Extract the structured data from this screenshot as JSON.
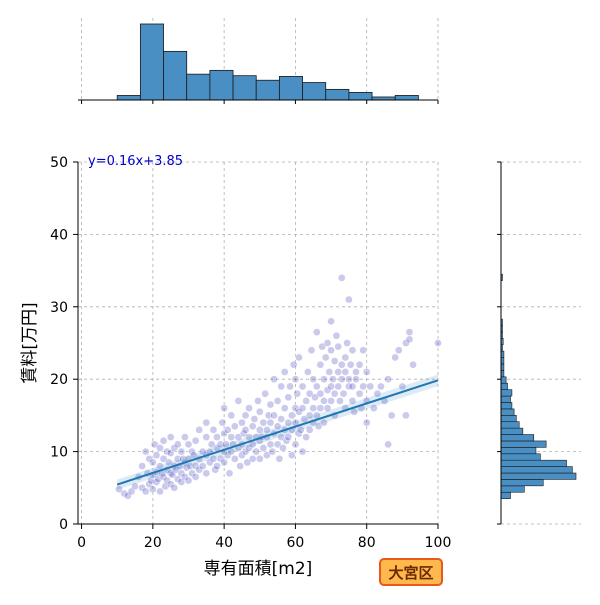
{
  "chart_data": {
    "type": "scatter",
    "title": "",
    "xlabel": "専有面積[m2]",
    "ylabel": "賃料[万円]",
    "xlim": [
      -1,
      100
    ],
    "ylim": [
      0,
      50
    ],
    "xticks": [
      "0",
      "20",
      "40",
      "60",
      "80",
      "100"
    ],
    "yticks": [
      "0",
      "10",
      "20",
      "30",
      "40",
      "50"
    ],
    "grid": true,
    "regression": {
      "label": "y=0.16x+3.85",
      "slope": 0.16,
      "intercept": 3.85,
      "x_range": [
        10,
        100
      ]
    },
    "badge": "大宮区",
    "colors": {
      "point": "#3f3fbf",
      "line": "#1f77b4",
      "bar": "#4a8fc4",
      "equation": "#0000cc",
      "badge_fill": "#ffb84d",
      "badge_border": "#e85a1a",
      "badge_text": "#6a2a00"
    },
    "points": [
      [
        10.5,
        4.8
      ],
      [
        12,
        4.2
      ],
      [
        13,
        3.9
      ],
      [
        14,
        4.5
      ],
      [
        15,
        5.2
      ],
      [
        16,
        6.5
      ],
      [
        17,
        5
      ],
      [
        17,
        8
      ],
      [
        18,
        4.5
      ],
      [
        18,
        10
      ],
      [
        18.5,
        7
      ],
      [
        19,
        5.5
      ],
      [
        19,
        9
      ],
      [
        19.5,
        6
      ],
      [
        20,
        6.8
      ],
      [
        20,
        8.5
      ],
      [
        20,
        4.8
      ],
      [
        20.5,
        11
      ],
      [
        21,
        7.2
      ],
      [
        21,
        9.5
      ],
      [
        21,
        5.8
      ],
      [
        21.5,
        6.2
      ],
      [
        22,
        8
      ],
      [
        22,
        10.5
      ],
      [
        22,
        4.5
      ],
      [
        22.5,
        7
      ],
      [
        23,
        6.5
      ],
      [
        23,
        9
      ],
      [
        23,
        11.5
      ],
      [
        23.5,
        5.2
      ],
      [
        24,
        7.5
      ],
      [
        24,
        10
      ],
      [
        24,
        6
      ],
      [
        24.5,
        8.5
      ],
      [
        25,
        7
      ],
      [
        25,
        5.5
      ],
      [
        25,
        9.8
      ],
      [
        25,
        12
      ],
      [
        25.5,
        6.8
      ],
      [
        26,
        8
      ],
      [
        26,
        10.5
      ],
      [
        26,
        5
      ],
      [
        26.5,
        7.5
      ],
      [
        27,
        9
      ],
      [
        27,
        6.2
      ],
      [
        27,
        11
      ],
      [
        27.5,
        8
      ],
      [
        28,
        7
      ],
      [
        28,
        10
      ],
      [
        28,
        5.8
      ],
      [
        28.5,
        9
      ],
      [
        29,
        8.5
      ],
      [
        29,
        6.5
      ],
      [
        29,
        12
      ],
      [
        29.5,
        7.8
      ],
      [
        30,
        9
      ],
      [
        30,
        6
      ],
      [
        30,
        11
      ],
      [
        30.5,
        8
      ],
      [
        31,
        7
      ],
      [
        31,
        10
      ],
      [
        31.5,
        9.5
      ],
      [
        32,
        8
      ],
      [
        32,
        6.5
      ],
      [
        32,
        11.5
      ],
      [
        33,
        9
      ],
      [
        33,
        7.5
      ],
      [
        33,
        13
      ],
      [
        34,
        10
      ],
      [
        34,
        8
      ],
      [
        35,
        9.5
      ],
      [
        35,
        7
      ],
      [
        35,
        12
      ],
      [
        35,
        14
      ],
      [
        36,
        10
      ],
      [
        36,
        8.5
      ],
      [
        36.5,
        11
      ],
      [
        37,
        9
      ],
      [
        37,
        13
      ],
      [
        37.5,
        7.5
      ],
      [
        38,
        10.5
      ],
      [
        38,
        12
      ],
      [
        38,
        8
      ],
      [
        39,
        11
      ],
      [
        39,
        9
      ],
      [
        39.5,
        14
      ],
      [
        40,
        10
      ],
      [
        40,
        12.5
      ],
      [
        40,
        8.5
      ],
      [
        40,
        16
      ],
      [
        40.5,
        11
      ],
      [
        41,
        9.5
      ],
      [
        41,
        13
      ],
      [
        41.5,
        7
      ],
      [
        42,
        12
      ],
      [
        42,
        10
      ],
      [
        42,
        15
      ],
      [
        42.5,
        11
      ],
      [
        43,
        9
      ],
      [
        43,
        13.5
      ],
      [
        44,
        10.5
      ],
      [
        44,
        12
      ],
      [
        44,
        17
      ],
      [
        44.5,
        8
      ],
      [
        45,
        11
      ],
      [
        45,
        14
      ],
      [
        45,
        9.5
      ],
      [
        45.5,
        12.5
      ],
      [
        46,
        10
      ],
      [
        46,
        15
      ],
      [
        46,
        13
      ],
      [
        46.5,
        8.5
      ],
      [
        47,
        12
      ],
      [
        47,
        10.5
      ],
      [
        47,
        16
      ],
      [
        48,
        11
      ],
      [
        48,
        13.5
      ],
      [
        48,
        9
      ],
      [
        48.5,
        14.5
      ],
      [
        49,
        12
      ],
      [
        49,
        10
      ],
      [
        49.5,
        17
      ],
      [
        50,
        11.5
      ],
      [
        50,
        13
      ],
      [
        50,
        9
      ],
      [
        50,
        15.5
      ],
      [
        50.5,
        12
      ],
      [
        51,
        10.5
      ],
      [
        51,
        14
      ],
      [
        51.5,
        18
      ],
      [
        52,
        12
      ],
      [
        52,
        13
      ],
      [
        52,
        9.5
      ],
      [
        52.5,
        15
      ],
      [
        53,
        11
      ],
      [
        53,
        14
      ],
      [
        53,
        16.5
      ],
      [
        53.5,
        10
      ],
      [
        54,
        12.5
      ],
      [
        54,
        15
      ],
      [
        54,
        20
      ],
      [
        55,
        11
      ],
      [
        55,
        13.5
      ],
      [
        55,
        17
      ],
      [
        55.5,
        9
      ],
      [
        56,
        12
      ],
      [
        56,
        14.5
      ],
      [
        56,
        19
      ],
      [
        56.5,
        10.5
      ],
      [
        57,
        13
      ],
      [
        57,
        16
      ],
      [
        57,
        21
      ],
      [
        57.5,
        11.5
      ],
      [
        58,
        14
      ],
      [
        58,
        17.5
      ],
      [
        58,
        12
      ],
      [
        58.5,
        19
      ],
      [
        59,
        13
      ],
      [
        59,
        15
      ],
      [
        59,
        9.5
      ],
      [
        59.5,
        22
      ],
      [
        60,
        14
      ],
      [
        60,
        16
      ],
      [
        60,
        20
      ],
      [
        60,
        11
      ],
      [
        60.5,
        18
      ],
      [
        61,
        12.5
      ],
      [
        61,
        15.5
      ],
      [
        61,
        23
      ],
      [
        61.5,
        13
      ],
      [
        62,
        16
      ],
      [
        62,
        10
      ],
      [
        62,
        19
      ],
      [
        62.5,
        14.5
      ],
      [
        63,
        17
      ],
      [
        63,
        12
      ],
      [
        63.5,
        21
      ],
      [
        64,
        15
      ],
      [
        64,
        18
      ],
      [
        64,
        13
      ],
      [
        64.5,
        24
      ],
      [
        65,
        16
      ],
      [
        65,
        20
      ],
      [
        65,
        14
      ],
      [
        65.5,
        17.5
      ],
      [
        66,
        15
      ],
      [
        66,
        19
      ],
      [
        66,
        26.5
      ],
      [
        66.5,
        13.5
      ],
      [
        67,
        18
      ],
      [
        67,
        22
      ],
      [
        67,
        16
      ],
      [
        67.5,
        24.5
      ],
      [
        68,
        17
      ],
      [
        68,
        20
      ],
      [
        68,
        14
      ],
      [
        68.5,
        23
      ],
      [
        69,
        18.5
      ],
      [
        69,
        16
      ],
      [
        69,
        25
      ],
      [
        69.5,
        21
      ],
      [
        70,
        19
      ],
      [
        70,
        17
      ],
      [
        70,
        24
      ],
      [
        70,
        28
      ],
      [
        70.5,
        20
      ],
      [
        71,
        18
      ],
      [
        71,
        22.5
      ],
      [
        71,
        15
      ],
      [
        71.5,
        26
      ],
      [
        72,
        19
      ],
      [
        72,
        21
      ],
      [
        72,
        24.5
      ],
      [
        72.5,
        17
      ],
      [
        73,
        22
      ],
      [
        73,
        20
      ],
      [
        73,
        34
      ],
      [
        73.5,
        18
      ],
      [
        74,
        23
      ],
      [
        74,
        21
      ],
      [
        74,
        16
      ],
      [
        74.5,
        25
      ],
      [
        75,
        20
      ],
      [
        75,
        19
      ],
      [
        75,
        31
      ],
      [
        75.5,
        22
      ],
      [
        76,
        19
      ],
      [
        76,
        17
      ],
      [
        76,
        24
      ],
      [
        76.5,
        15.5
      ],
      [
        77,
        21
      ],
      [
        77,
        20
      ],
      [
        78,
        18
      ],
      [
        78,
        22
      ],
      [
        78.5,
        16
      ],
      [
        79,
        19
      ],
      [
        79,
        24
      ],
      [
        80,
        14
      ],
      [
        80,
        17
      ],
      [
        80,
        21
      ],
      [
        81,
        19
      ],
      [
        82,
        16
      ],
      [
        83,
        18
      ],
      [
        84,
        19
      ],
      [
        85,
        17
      ],
      [
        86,
        20
      ],
      [
        86,
        11
      ],
      [
        87,
        15
      ],
      [
        88,
        23
      ],
      [
        89,
        24
      ],
      [
        90,
        19
      ],
      [
        91,
        25
      ],
      [
        91,
        15
      ],
      [
        92,
        26.5
      ],
      [
        92,
        25.5
      ],
      [
        93,
        22
      ],
      [
        100,
        25
      ]
    ],
    "top_histogram": {
      "range": [
        10,
        94.5
      ],
      "bins": 13,
      "counts": [
        6,
        100,
        64,
        34,
        39,
        32,
        26,
        31,
        23,
        14,
        10,
        4,
        6
      ]
    },
    "right_histogram": {
      "range": [
        3.5,
        34.5
      ],
      "bins": 35,
      "counts": [
        13,
        32,
        58,
        103,
        98,
        90,
        54,
        48,
        62,
        45,
        30,
        25,
        21,
        18,
        15,
        13,
        15,
        9,
        7,
        4,
        4,
        4,
        4,
        2,
        3,
        2,
        2,
        2,
        0,
        0,
        0,
        0,
        0,
        0,
        2
      ]
    }
  }
}
